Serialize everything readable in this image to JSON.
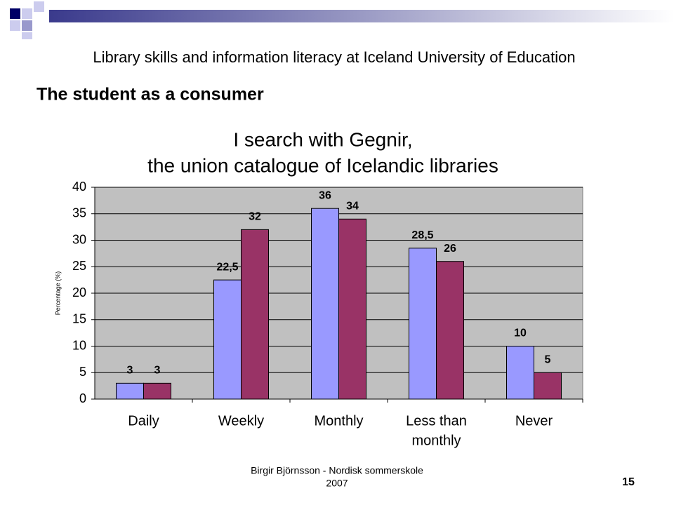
{
  "header": {
    "subtitle": "Library skills and information literacy at Iceland University of Education",
    "title": "The student as a consumer"
  },
  "chart_data": {
    "type": "bar",
    "title": [
      "I search with Gegnir,",
      "the union catalogue of Icelandic libraries"
    ],
    "y_label": "Percentage (%)",
    "categories": [
      "Daily",
      "Weekly",
      "Monthly",
      [
        "Less than",
        "monthly"
      ],
      "Never"
    ],
    "series": [
      {
        "color": "#9999ff",
        "values": [
          3,
          22.5,
          36,
          28.5,
          10
        ],
        "value_labels": [
          "3",
          "22,5",
          "36",
          "28,5",
          "10"
        ]
      },
      {
        "color": "#993366",
        "values": [
          3,
          32,
          34,
          26,
          5
        ]
      }
    ],
    "ylim": [
      0,
      40
    ],
    "yticks": [
      0,
      5,
      10,
      15,
      20,
      25,
      30,
      35,
      40
    ],
    "grid": true
  },
  "footer": {
    "author": [
      "Birgir Björnsson - Nordisk sommerskole",
      "2007"
    ],
    "page": "15"
  }
}
